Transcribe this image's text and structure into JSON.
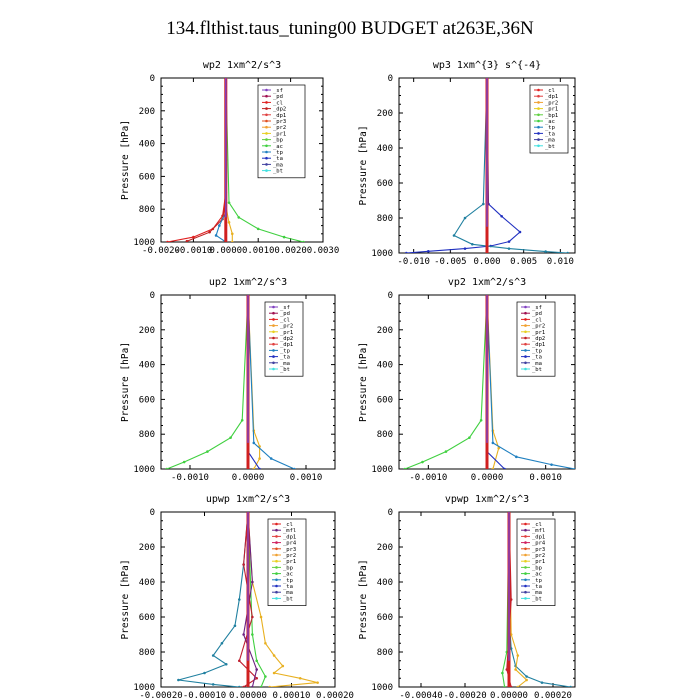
{
  "title": "134.flthist.taus_tuning00  BUDGET at263E,36N",
  "chart_data": [
    {
      "type": "line",
      "title": "wp2  1xm^2/s^3",
      "ylabel": "Pressure [hPa]",
      "xlim": [
        -0.002,
        0.003
      ],
      "ylim": [
        1000,
        0
      ],
      "xticks": [
        -0.002,
        -0.001,
        0.0,
        0.001,
        0.002,
        0.003
      ],
      "xtick_labels": [
        "-0.0020",
        "-0.0010",
        "0.0000",
        "0.0010",
        "0.0020",
        "0.0030"
      ],
      "yticks": [
        0,
        200,
        400,
        600,
        800,
        1000
      ],
      "legend": [
        "_sf",
        "_pd",
        "_cl",
        "_dp2",
        "_dp1",
        "_pr3",
        "_pr2",
        "_pr1",
        "_bp",
        "_ac",
        "_tp",
        "_ta",
        "_ma",
        "_bt"
      ],
      "series": [
        {
          "name": "_sf",
          "color": "#8040c0",
          "x": [
            0,
            0,
            0
          ],
          "y": [
            0,
            500,
            1000
          ]
        },
        {
          "name": "_pd",
          "color": "#a01050",
          "x": [
            0,
            0,
            0,
            0
          ],
          "y": [
            0,
            500,
            900,
            1000
          ]
        },
        {
          "name": "_cl",
          "color": "#e02020",
          "x": [
            0,
            0,
            -0.0001,
            -0.0004,
            -0.001,
            -0.0018
          ],
          "y": [
            0,
            700,
            840,
            920,
            970,
            1000
          ]
        },
        {
          "name": "_dp2",
          "color": "#c02020",
          "x": [
            0,
            0,
            -0.0001,
            -0.0005,
            -0.0012
          ],
          "y": [
            0,
            750,
            860,
            940,
            995
          ]
        },
        {
          "name": "_pr1",
          "color": "#e8b020",
          "x": [
            0,
            0,
            0.0001,
            0.0002,
            0.0002
          ],
          "y": [
            0,
            780,
            880,
            950,
            1000
          ]
        },
        {
          "name": "_ac",
          "color": "#40d040",
          "x": [
            0,
            0.0001,
            0.0004,
            0.001,
            0.0018,
            0.0024
          ],
          "y": [
            0,
            760,
            850,
            920,
            970,
            1000
          ]
        },
        {
          "name": "_tp",
          "color": "#2080c0",
          "x": [
            0,
            0,
            -0.0002,
            -0.0003,
            0
          ],
          "y": [
            0,
            820,
            900,
            960,
            1000
          ]
        },
        {
          "name": "_bt",
          "color": "#40e0e0",
          "x": [
            0,
            0,
            0
          ],
          "y": [
            0,
            600,
            1000
          ]
        }
      ]
    },
    {
      "type": "line",
      "title": "wp3  1xm^{3} s^{-4}",
      "ylabel": "Pressure [hPa]",
      "xlim": [
        -0.012,
        0.012
      ],
      "ylim": [
        1000,
        0
      ],
      "xticks": [
        -0.01,
        -0.005,
        0.0,
        0.005,
        0.01
      ],
      "xtick_labels": [
        "-0.010",
        "-0.005",
        "0.000",
        "0.005",
        "0.010"
      ],
      "yticks": [
        0,
        200,
        400,
        600,
        800,
        1000
      ],
      "legend": [
        "_cl",
        "_dp1",
        "_pr2",
        "_pr1",
        "_bp1",
        "_ac",
        "_tp",
        "_ta",
        "_ma",
        "_bt"
      ],
      "series": [
        {
          "name": "_ta",
          "color": "#2030c0",
          "x": [
            0,
            0.0002,
            0.002,
            0.0045,
            0.003,
            0.0005,
            -0.003,
            -0.008,
            -0.011
          ],
          "y": [
            0,
            720,
            790,
            880,
            935,
            960,
            975,
            990,
            1000
          ]
        },
        {
          "name": "_tp",
          "color": "#2080a0",
          "x": [
            0,
            -0.0005,
            -0.003,
            -0.0045,
            -0.002,
            0.003,
            0.008,
            0.011
          ],
          "y": [
            0,
            720,
            800,
            900,
            950,
            975,
            992,
            1000
          ]
        },
        {
          "name": "_ac",
          "color": "#40d040",
          "x": [
            0,
            0,
            0
          ],
          "y": [
            0,
            800,
            1000
          ]
        },
        {
          "name": "_cl",
          "color": "#e02020",
          "x": [
            0,
            0,
            0
          ],
          "y": [
            0,
            500,
            1000
          ]
        },
        {
          "name": "_bt",
          "color": "#40e0e0",
          "x": [
            0,
            0,
            0
          ],
          "y": [
            0,
            500,
            1000
          ]
        }
      ]
    },
    {
      "type": "line",
      "title": "up2  1xm^2/s^3",
      "ylabel": "Pressure [hPa]",
      "xlim": [
        -0.0015,
        0.0015
      ],
      "ylim": [
        1000,
        0
      ],
      "xticks": [
        -0.001,
        0.0,
        0.001
      ],
      "xtick_labels": [
        "-0.0010",
        "0.0000",
        "0.0010"
      ],
      "yticks": [
        0,
        200,
        400,
        600,
        800,
        1000
      ],
      "legend": [
        "_sf",
        "_pd",
        "_cl",
        "_pr2",
        "_pr1",
        "_dp2",
        "_dp1",
        "_tp",
        "_ta",
        "_ma",
        "_bt"
      ],
      "series": [
        {
          "name": "_dp1",
          "color": "#40d040",
          "x": [
            0,
            -0.0001,
            -0.0003,
            -0.0007,
            -0.0011,
            -0.0014
          ],
          "y": [
            0,
            720,
            820,
            900,
            960,
            1000
          ]
        },
        {
          "name": "_pr1",
          "color": "#e8b020",
          "x": [
            0,
            0.0001,
            0.0002,
            0.0002,
            0.0001
          ],
          "y": [
            0,
            780,
            870,
            940,
            1000
          ]
        },
        {
          "name": "_tp",
          "color": "#2080c0",
          "x": [
            0,
            0.0001,
            0.0004,
            0.0008
          ],
          "y": [
            0,
            850,
            940,
            1000
          ]
        },
        {
          "name": "_ta",
          "color": "#2030c0",
          "x": [
            0,
            0,
            0.0002
          ],
          "y": [
            0,
            900,
            1000
          ]
        },
        {
          "name": "_cl",
          "color": "#e02020",
          "x": [
            0,
            0,
            0
          ],
          "y": [
            0,
            500,
            1000
          ]
        },
        {
          "name": "_bt",
          "color": "#40e0e0",
          "x": [
            0,
            0,
            0
          ],
          "y": [
            0,
            500,
            1000
          ]
        }
      ]
    },
    {
      "type": "line",
      "title": "vp2  1xm^2/s^3",
      "ylabel": "Pressure [hPa]",
      "xlim": [
        -0.0015,
        0.0015
      ],
      "ylim": [
        1000,
        0
      ],
      "xticks": [
        -0.001,
        0.0,
        0.001
      ],
      "xtick_labels": [
        "-0.0010",
        "0.0000",
        "0.0010"
      ],
      "yticks": [
        0,
        200,
        400,
        600,
        800,
        1000
      ],
      "legend": [
        "_sf",
        "_pd",
        "_cl",
        "_pr2",
        "_pr1",
        "_dp2",
        "_dp1",
        "_tp",
        "_ta",
        "_ma",
        "_bt"
      ],
      "series": [
        {
          "name": "_dp1",
          "color": "#40d040",
          "x": [
            0,
            -0.0001,
            -0.0003,
            -0.0007,
            -0.0011,
            -0.0014
          ],
          "y": [
            0,
            720,
            820,
            900,
            960,
            1000
          ]
        },
        {
          "name": "_pr1",
          "color": "#e8b020",
          "x": [
            0,
            0.0001,
            0.0002,
            0.0001
          ],
          "y": [
            0,
            780,
            880,
            1000
          ]
        },
        {
          "name": "_tp",
          "color": "#2080c0",
          "x": [
            0,
            0.0001,
            0.0005,
            0.0011,
            0.0015
          ],
          "y": [
            0,
            850,
            930,
            975,
            1000
          ]
        },
        {
          "name": "_ta",
          "color": "#2030c0",
          "x": [
            0,
            0,
            0.0003
          ],
          "y": [
            0,
            900,
            1000
          ]
        },
        {
          "name": "_cl",
          "color": "#e02020",
          "x": [
            0,
            0,
            0
          ],
          "y": [
            0,
            500,
            1000
          ]
        },
        {
          "name": "_bt",
          "color": "#40e0e0",
          "x": [
            0,
            0,
            0
          ],
          "y": [
            0,
            500,
            1000
          ]
        }
      ]
    },
    {
      "type": "line",
      "title": "upwp  1xm^2/s^3",
      "ylabel": "Pressure [hPa]",
      "xlim": [
        -0.0002,
        0.0002
      ],
      "ylim": [
        1000,
        0
      ],
      "xticks": [
        -0.0002,
        -0.0001,
        0.0,
        0.0001,
        0.0002
      ],
      "xtick_labels": [
        "-0.00020",
        "-0.00010",
        "0.00000",
        "0.00010",
        "0.00020"
      ],
      "yticks": [
        0,
        200,
        400,
        600,
        800,
        1000
      ],
      "legend": [
        "_cl",
        "_mfl",
        "_dp1",
        "_pr4",
        "_pr3",
        "_pr2",
        "_pr1",
        "_bp",
        "_ac",
        "_tp",
        "_ta",
        "_ma",
        "_bt"
      ],
      "series": [
        {
          "name": "_tp",
          "color": "#2080a0",
          "x": [
            0,
            -1e-05,
            -2e-05,
            -3e-05,
            -6e-05,
            -8e-05,
            -5e-05,
            -0.0001,
            -0.00016,
            -8e-05,
            -2e-05
          ],
          "y": [
            0,
            300,
            500,
            650,
            750,
            820,
            870,
            920,
            960,
            985,
            1000
          ]
        },
        {
          "name": "_pr1",
          "color": "#e8b020",
          "x": [
            0,
            1e-05,
            3e-05,
            4e-05,
            6e-05,
            8e-05,
            6e-05,
            0.00012,
            0.00016,
            5e-05
          ],
          "y": [
            0,
            400,
            600,
            750,
            820,
            880,
            920,
            950,
            975,
            1000
          ]
        },
        {
          "name": "_ac",
          "color": "#40d040",
          "x": [
            0,
            1e-05,
            2e-05,
            4e-05,
            3e-05
          ],
          "y": [
            0,
            700,
            850,
            940,
            1000
          ]
        },
        {
          "name": "_pr3",
          "color": "#c02030",
          "x": [
            0,
            -1e-05,
            1e-05,
            -2e-05,
            2e-05,
            -1e-05
          ],
          "y": [
            0,
            300,
            600,
            850,
            950,
            1000
          ]
        },
        {
          "name": "_mfl",
          "color": "#6a2080",
          "x": [
            0,
            1e-05,
            -1e-05,
            2e-05,
            1e-05
          ],
          "y": [
            0,
            400,
            700,
            900,
            1000
          ]
        },
        {
          "name": "_cl",
          "color": "#8040c0",
          "x": [
            0,
            0,
            0
          ],
          "y": [
            0,
            500,
            1000
          ]
        },
        {
          "name": "_bt",
          "color": "#40e0e0",
          "x": [
            0,
            0,
            0
          ],
          "y": [
            0,
            500,
            1000
          ]
        }
      ]
    },
    {
      "type": "line",
      "title": "vpwp  1xm^2/s^3",
      "ylabel": "Pressure [hPa]",
      "xlim": [
        -0.0005,
        0.0003
      ],
      "ylim": [
        1000,
        0
      ],
      "xticks": [
        -0.0004,
        -0.0002,
        0.0,
        0.0002
      ],
      "xtick_labels": [
        "-0.00040",
        "-0.00020",
        "0.00000",
        "0.00020"
      ],
      "yticks": [
        0,
        200,
        400,
        600,
        800,
        1000
      ],
      "legend": [
        "_cl",
        "_mfl",
        "_dp1",
        "_pr4",
        "_pr3",
        "_pr2",
        "_pr1",
        "_bp",
        "_ac",
        "_tp",
        "_ta",
        "_ma",
        "_bt"
      ],
      "series": [
        {
          "name": "_tp",
          "color": "#2080a0",
          "x": [
            0,
            0,
            1e-05,
            3e-05,
            8e-05,
            0.00015,
            0.00028
          ],
          "y": [
            0,
            600,
            780,
            880,
            940,
            975,
            1000
          ]
        },
        {
          "name": "_pr1",
          "color": "#e8b020",
          "x": [
            0,
            1e-05,
            4e-05,
            3e-05,
            8e-05,
            4e-05
          ],
          "y": [
            0,
            700,
            820,
            900,
            960,
            1000
          ]
        },
        {
          "name": "_ac",
          "color": "#40d040",
          "x": [
            0,
            -1e-05,
            -3e-05,
            -2e-05
          ],
          "y": [
            0,
            800,
            920,
            1000
          ]
        },
        {
          "name": "_pr3",
          "color": "#c02030",
          "x": [
            0,
            1e-05,
            -1e-05,
            1e-05
          ],
          "y": [
            0,
            500,
            900,
            1000
          ]
        },
        {
          "name": "_cl",
          "color": "#8040c0",
          "x": [
            0,
            0,
            0
          ],
          "y": [
            0,
            500,
            1000
          ]
        },
        {
          "name": "_bt",
          "color": "#40e0e0",
          "x": [
            0,
            0,
            0
          ],
          "y": [
            0,
            500,
            1000
          ]
        }
      ]
    }
  ]
}
